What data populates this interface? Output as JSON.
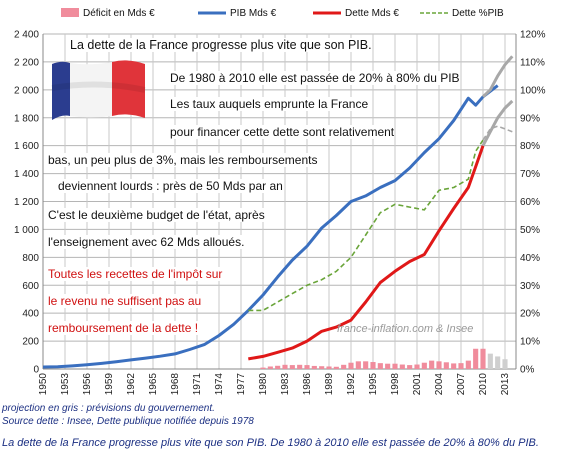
{
  "chart_data": {
    "type": "line",
    "x_ticks": [
      "1950",
      "1953",
      "1956",
      "1959",
      "1962",
      "1965",
      "1968",
      "1971",
      "1974",
      "1977",
      "1980",
      "1983",
      "1986",
      "1989",
      "1992",
      "1995",
      "1998",
      "2001",
      "2004",
      "2007",
      "2010",
      "2013"
    ],
    "y_left_ticks": [
      "0",
      "200",
      "400",
      "600",
      "800",
      "1 000",
      "1 200",
      "1 400",
      "1 600",
      "1 800",
      "2 000",
      "2 200",
      "2 400"
    ],
    "y_right_ticks": [
      "0%",
      "10%",
      "20%",
      "30%",
      "40%",
      "50%",
      "60%",
      "70%",
      "80%",
      "90%",
      "100%",
      "110%",
      "120%"
    ],
    "ylim_left": [
      0,
      2400
    ],
    "ylim_right": [
      0,
      120
    ],
    "legend": [
      "Déficit en Mds €",
      "PIB Mds €",
      "Dette Mds €",
      "Dette %PIB"
    ],
    "series": [
      {
        "name": "PIB Mds €",
        "color": "#3a6fbf",
        "axis": "left",
        "x": [
          1950,
          1952,
          1954,
          1956,
          1958,
          1960,
          1962,
          1964,
          1966,
          1968,
          1970,
          1972,
          1974,
          1976,
          1978,
          1980,
          1982,
          1984,
          1986,
          1988,
          1990,
          1992,
          1994,
          1996,
          1998,
          2000,
          2002,
          2004,
          2006,
          2008,
          2009,
          2010,
          2012
        ],
        "values": [
          14,
          16,
          22,
          30,
          40,
          52,
          65,
          78,
          92,
          108,
          140,
          175,
          240,
          320,
          420,
          530,
          660,
          780,
          880,
          1010,
          1100,
          1200,
          1240,
          1300,
          1350,
          1440,
          1550,
          1650,
          1780,
          1940,
          1890,
          1950,
          2030
        ]
      },
      {
        "name": "Dette Mds €",
        "color": "#e01818",
        "axis": "left",
        "x": [
          1978,
          1980,
          1982,
          1984,
          1986,
          1988,
          1990,
          1992,
          1994,
          1996,
          1998,
          2000,
          2002,
          2004,
          2006,
          2008,
          2009,
          2010
        ],
        "values": [
          72,
          90,
          120,
          150,
          200,
          270,
          300,
          350,
          480,
          620,
          700,
          770,
          820,
          990,
          1150,
          1300,
          1450,
          1600
        ]
      },
      {
        "name": "Dette %PIB",
        "color": "#6aa53a",
        "axis": "right",
        "dashed": true,
        "x": [
          1978,
          1980,
          1982,
          1984,
          1986,
          1988,
          1990,
          1992,
          1994,
          1996,
          1998,
          2000,
          2002,
          2004,
          2006,
          2008,
          2009,
          2010
        ],
        "values": [
          21,
          21,
          24,
          27,
          30,
          32,
          35,
          40,
          48,
          56,
          59,
          58,
          57,
          64,
          65,
          68,
          78,
          82
        ]
      },
      {
        "name": "projection",
        "color": "#a8a8a8",
        "axis": "left",
        "x": [
          2010,
          2011,
          2012,
          2013,
          2014
        ],
        "values": [
          1950,
          2000,
          2100,
          2180,
          2240
        ]
      },
      {
        "name": "projection",
        "color": "#a8a8a8",
        "axis": "left",
        "x": [
          2010,
          2011,
          2012,
          2013,
          2014
        ],
        "values": [
          1600,
          1700,
          1800,
          1870,
          1920
        ]
      },
      {
        "name": "projection",
        "color": "#a8a8a8",
        "axis": "right",
        "dashed": true,
        "x": [
          2010,
          2011,
          2012,
          2013,
          2014
        ],
        "values": [
          82,
          86,
          87,
          86,
          85
        ]
      }
    ],
    "deficit": {
      "name": "Déficit en Mds €",
      "color": "#f08c9c",
      "projection_color": "#cfcfcf",
      "x": [
        1980,
        1981,
        1982,
        1983,
        1984,
        1985,
        1986,
        1987,
        1988,
        1989,
        1990,
        1991,
        1992,
        1993,
        1994,
        1995,
        1996,
        1997,
        1998,
        1999,
        2000,
        2001,
        2002,
        2003,
        2004,
        2005,
        2006,
        2007,
        2008,
        2009,
        2010,
        2011,
        2012,
        2013
      ],
      "values": [
        10,
        18,
        23,
        30,
        28,
        30,
        28,
        22,
        20,
        18,
        16,
        30,
        45,
        55,
        55,
        50,
        42,
        38,
        38,
        32,
        28,
        32,
        45,
        60,
        55,
        48,
        40,
        42,
        60,
        145,
        145,
        110,
        90,
        70
      ],
      "projection_from": 2010
    }
  },
  "annotations": {
    "line1": "La dette de la France progresse  plus vite que son PIB.",
    "line2": "De 1980 à 2010  elle  est passée de 20% à 80%  du PIB",
    "line3": "Les taux auquels emprunte  la France",
    "line4": "pour  financer cette dette sont relativement",
    "line5": "bas, un peu plus de 3%,  mais les remboursements",
    "line6": "deviennent lourds : près de 50 Mds par an",
    "line7": "C'est le deuxième  budget de l'état, après",
    "line8": "l'enseignement  avec 62 Mds alloués.",
    "red1": "Toutes les recettes de l'impôt  sur",
    "red2": "le revenu ne suffisent pas au",
    "red3": "remboursement  de la dette  !"
  },
  "watermark": "france-inflation.com & Insee",
  "notes": {
    "projection": "projection en gris : prévisions du gouvernement.",
    "source": "Source dette : Insee, Dette publique notifiée depuis 1978"
  },
  "caption": "La dette de la France progresse plus vite que son PIB. De 1980 à 2010 elle est passée de 20% à 80% du PIB."
}
